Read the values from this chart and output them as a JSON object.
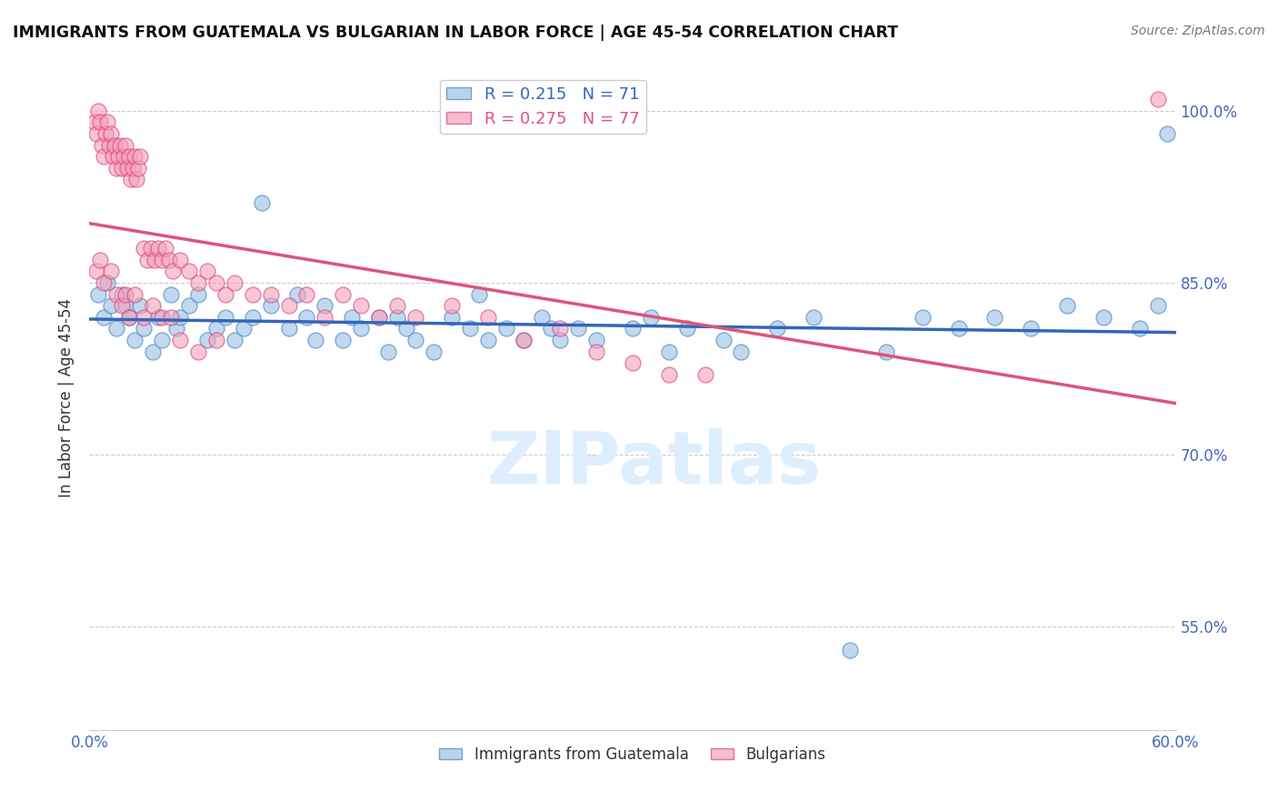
{
  "title": "IMMIGRANTS FROM GUATEMALA VS BULGARIAN IN LABOR FORCE | AGE 45-54 CORRELATION CHART",
  "source": "Source: ZipAtlas.com",
  "ylabel": "In Labor Force | Age 45-54",
  "legend_labels": [
    "Immigrants from Guatemala",
    "Bulgarians"
  ],
  "blue_R": 0.215,
  "blue_N": 71,
  "pink_R": 0.275,
  "pink_N": 77,
  "blue_color": "#a8c8e8",
  "pink_color": "#f4a0b8",
  "blue_edge_color": "#5590c8",
  "pink_edge_color": "#d84080",
  "blue_line_color": "#3366bb",
  "pink_line_color": "#dd5577",
  "watermark_color": "#ddeeff",
  "xlim": [
    0.0,
    0.6
  ],
  "ylim": [
    0.46,
    1.04
  ],
  "right_yticks": [
    1.0,
    0.85,
    0.7,
    0.55
  ],
  "right_yticklabels": [
    "100.0%",
    "85.0%",
    "70.0%",
    "55.0%"
  ],
  "xticks": [
    0.0,
    0.1,
    0.2,
    0.3,
    0.4,
    0.5,
    0.6
  ],
  "xticklabels": [
    "0.0%",
    "",
    "",
    "",
    "",
    "",
    "60.0%"
  ],
  "blue_scatter_x": [
    0.005,
    0.008,
    0.01,
    0.012,
    0.015,
    0.018,
    0.02,
    0.022,
    0.025,
    0.028,
    0.03,
    0.035,
    0.038,
    0.04,
    0.045,
    0.048,
    0.05,
    0.055,
    0.06,
    0.065,
    0.07,
    0.075,
    0.08,
    0.085,
    0.09,
    0.095,
    0.1,
    0.11,
    0.115,
    0.12,
    0.125,
    0.13,
    0.14,
    0.145,
    0.15,
    0.16,
    0.165,
    0.17,
    0.175,
    0.18,
    0.19,
    0.2,
    0.21,
    0.215,
    0.22,
    0.23,
    0.24,
    0.25,
    0.255,
    0.26,
    0.27,
    0.28,
    0.3,
    0.31,
    0.32,
    0.33,
    0.35,
    0.36,
    0.38,
    0.4,
    0.42,
    0.44,
    0.46,
    0.48,
    0.5,
    0.52,
    0.54,
    0.56,
    0.58,
    0.59,
    0.595
  ],
  "blue_scatter_y": [
    0.84,
    0.82,
    0.85,
    0.83,
    0.81,
    0.84,
    0.83,
    0.82,
    0.8,
    0.83,
    0.81,
    0.79,
    0.82,
    0.8,
    0.84,
    0.81,
    0.82,
    0.83,
    0.84,
    0.8,
    0.81,
    0.82,
    0.8,
    0.81,
    0.82,
    0.92,
    0.83,
    0.81,
    0.84,
    0.82,
    0.8,
    0.83,
    0.8,
    0.82,
    0.81,
    0.82,
    0.79,
    0.82,
    0.81,
    0.8,
    0.79,
    0.82,
    0.81,
    0.84,
    0.8,
    0.81,
    0.8,
    0.82,
    0.81,
    0.8,
    0.81,
    0.8,
    0.81,
    0.82,
    0.79,
    0.81,
    0.8,
    0.79,
    0.81,
    0.82,
    0.53,
    0.79,
    0.82,
    0.81,
    0.82,
    0.81,
    0.83,
    0.82,
    0.81,
    0.83,
    0.98
  ],
  "pink_scatter_x": [
    0.003,
    0.004,
    0.005,
    0.006,
    0.007,
    0.008,
    0.009,
    0.01,
    0.011,
    0.012,
    0.013,
    0.014,
    0.015,
    0.016,
    0.017,
    0.018,
    0.019,
    0.02,
    0.021,
    0.022,
    0.023,
    0.024,
    0.025,
    0.026,
    0.027,
    0.028,
    0.03,
    0.032,
    0.034,
    0.036,
    0.038,
    0.04,
    0.042,
    0.044,
    0.046,
    0.05,
    0.055,
    0.06,
    0.065,
    0.07,
    0.075,
    0.08,
    0.09,
    0.1,
    0.11,
    0.12,
    0.13,
    0.14,
    0.15,
    0.16,
    0.17,
    0.18,
    0.2,
    0.22,
    0.24,
    0.26,
    0.28,
    0.3,
    0.32,
    0.34,
    0.004,
    0.006,
    0.008,
    0.012,
    0.015,
    0.018,
    0.02,
    0.022,
    0.025,
    0.03,
    0.035,
    0.04,
    0.045,
    0.05,
    0.06,
    0.07,
    0.59
  ],
  "pink_scatter_y": [
    0.99,
    0.98,
    1.0,
    0.99,
    0.97,
    0.96,
    0.98,
    0.99,
    0.97,
    0.98,
    0.96,
    0.97,
    0.95,
    0.96,
    0.97,
    0.95,
    0.96,
    0.97,
    0.95,
    0.96,
    0.94,
    0.95,
    0.96,
    0.94,
    0.95,
    0.96,
    0.88,
    0.87,
    0.88,
    0.87,
    0.88,
    0.87,
    0.88,
    0.87,
    0.86,
    0.87,
    0.86,
    0.85,
    0.86,
    0.85,
    0.84,
    0.85,
    0.84,
    0.84,
    0.83,
    0.84,
    0.82,
    0.84,
    0.83,
    0.82,
    0.83,
    0.82,
    0.83,
    0.82,
    0.8,
    0.81,
    0.79,
    0.78,
    0.77,
    0.77,
    0.86,
    0.87,
    0.85,
    0.86,
    0.84,
    0.83,
    0.84,
    0.82,
    0.84,
    0.82,
    0.83,
    0.82,
    0.82,
    0.8,
    0.79,
    0.8,
    1.01
  ]
}
